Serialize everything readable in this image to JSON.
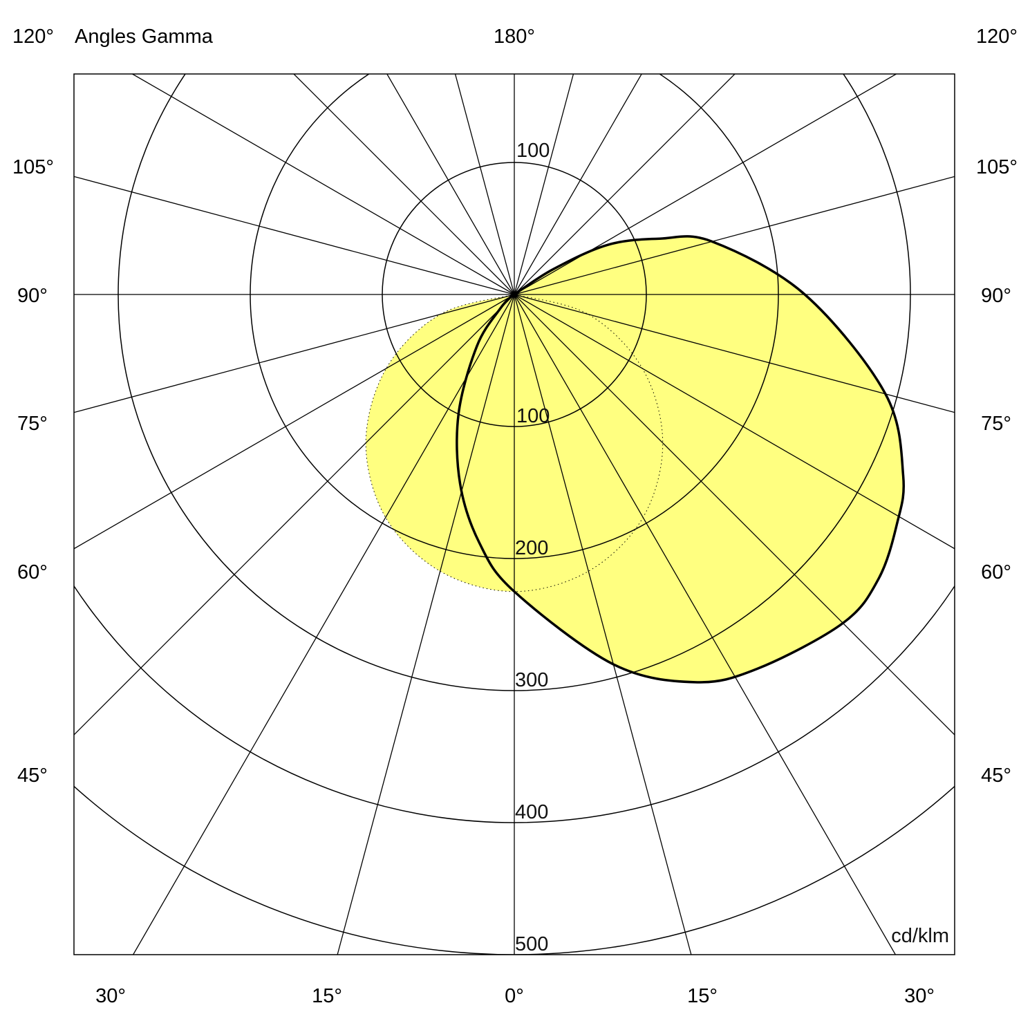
{
  "chart_data": {
    "type": "polar",
    "title": "Angles Gamma",
    "unit": "cd/klm",
    "top_angle_label": "180°",
    "left_angle_labels": [
      "120°",
      "105°",
      "90°",
      "75°",
      "60°",
      "45°"
    ],
    "right_angle_labels": [
      "120°",
      "105°",
      "90°",
      "75°",
      "60°",
      "45°"
    ],
    "bottom_angle_labels": [
      "30°",
      "15°",
      "0°",
      "15°",
      "30°"
    ],
    "radial_ticks": [
      100,
      200,
      300,
      400,
      500
    ],
    "upper_ring_label": "100",
    "radial_range": [
      0,
      500
    ],
    "angular_grid_step_deg": 15,
    "fill_color": "#FFFF80",
    "line_color": "#000000",
    "series": [
      {
        "style": "dotted",
        "points": [
          [
            -90,
            0
          ],
          [
            -75,
            58
          ],
          [
            -60,
            112
          ],
          [
            -45,
            159
          ],
          [
            -30,
            195
          ],
          [
            -15,
            217
          ],
          [
            0,
            225
          ],
          [
            15,
            217
          ],
          [
            30,
            195
          ],
          [
            45,
            159
          ],
          [
            60,
            112
          ],
          [
            75,
            58
          ],
          [
            90,
            0
          ]
        ]
      },
      {
        "style": "solid",
        "points": [
          [
            -90,
            0
          ],
          [
            -60,
            2
          ],
          [
            -45,
            15
          ],
          [
            -36,
            48
          ],
          [
            -25,
            100
          ],
          [
            -16,
            149
          ],
          [
            -8,
            190
          ],
          [
            0,
            225
          ],
          [
            15,
            290
          ],
          [
            25,
            324
          ],
          [
            33,
            338
          ],
          [
            45,
            352
          ],
          [
            52,
            350
          ],
          [
            59,
            338
          ],
          [
            65,
            325
          ],
          [
            75,
            291
          ],
          [
            90,
            220
          ],
          [
            105,
            155
          ],
          [
            111,
            118
          ],
          [
            118,
            80
          ],
          [
            123,
            35
          ],
          [
            126,
            0
          ]
        ]
      }
    ]
  }
}
